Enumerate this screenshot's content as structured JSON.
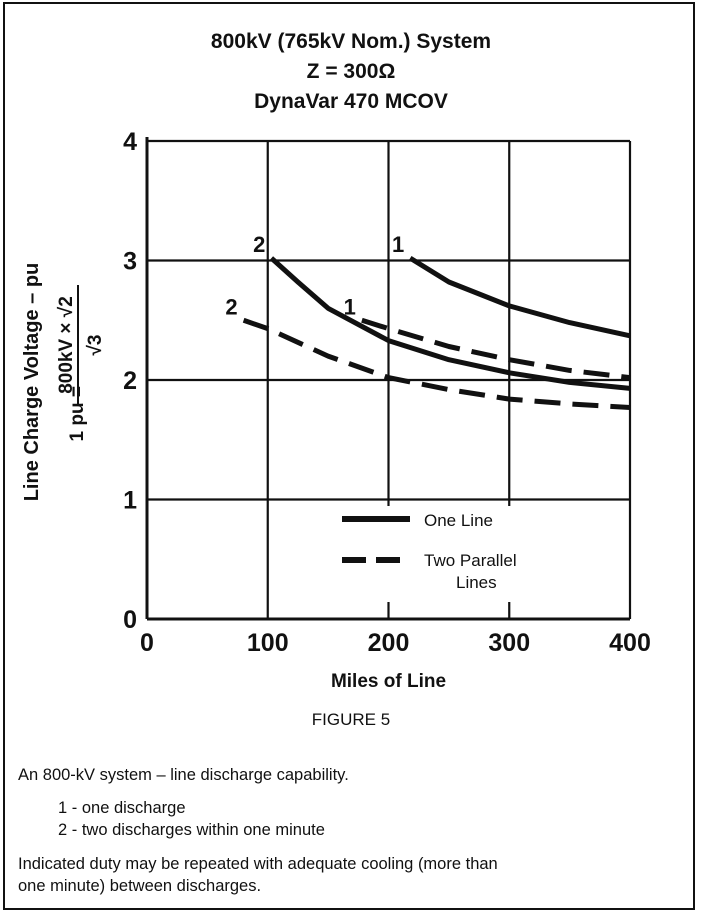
{
  "figure": {
    "title_lines": [
      "800kV (765kV Nom.) System",
      "Z = 300Ω",
      "DynaVar 470 MCOV"
    ],
    "label": "FIGURE 5"
  },
  "caption": {
    "main": "An 800-kV system – line discharge capability.",
    "items": [
      "1 - one discharge",
      "2 - two discharges within one minute"
    ],
    "note_lines": [
      "Indicated duty may be repeated with adequate cooling (more than",
      "one minute) between discharges."
    ]
  },
  "chart_data": {
    "type": "line",
    "xlabel": "Miles of Line",
    "ylabel_main": "Line Charge Voltage – pu",
    "ylabel_def_lhs": "1 pu =",
    "ylabel_def_numerator": "800kV × √2",
    "ylabel_def_denominator": "√3",
    "xlim": [
      0,
      400
    ],
    "ylim": [
      0,
      4
    ],
    "x_ticks": [
      0,
      100,
      200,
      300,
      400
    ],
    "y_ticks": [
      0,
      1,
      2,
      3,
      4
    ],
    "grid": true,
    "legend_position": "lower-right",
    "legend": [
      {
        "style": "solid",
        "label_lines": [
          "One Line"
        ]
      },
      {
        "style": "dashed",
        "label_lines": [
          "Two Parallel",
          "Lines"
        ]
      }
    ],
    "series": [
      {
        "label": "1",
        "style": "solid",
        "points": [
          [
            218,
            3.02
          ],
          [
            250,
            2.82
          ],
          [
            300,
            2.62
          ],
          [
            350,
            2.48
          ],
          [
            400,
            2.37
          ]
        ]
      },
      {
        "label": "2",
        "style": "solid",
        "points": [
          [
            103,
            3.02
          ],
          [
            125,
            2.82
          ],
          [
            150,
            2.6
          ],
          [
            200,
            2.33
          ],
          [
            250,
            2.17
          ],
          [
            300,
            2.06
          ],
          [
            350,
            1.98
          ],
          [
            400,
            1.93
          ]
        ]
      },
      {
        "label": "1",
        "style": "dashed",
        "points": [
          [
            178,
            2.5
          ],
          [
            200,
            2.43
          ],
          [
            250,
            2.28
          ],
          [
            300,
            2.17
          ],
          [
            350,
            2.08
          ],
          [
            400,
            2.02
          ]
        ]
      },
      {
        "label": "2",
        "style": "dashed",
        "points": [
          [
            80,
            2.5
          ],
          [
            100,
            2.43
          ],
          [
            150,
            2.2
          ],
          [
            200,
            2.02
          ],
          [
            250,
            1.92
          ],
          [
            300,
            1.84
          ],
          [
            350,
            1.8
          ],
          [
            400,
            1.77
          ]
        ]
      }
    ]
  }
}
